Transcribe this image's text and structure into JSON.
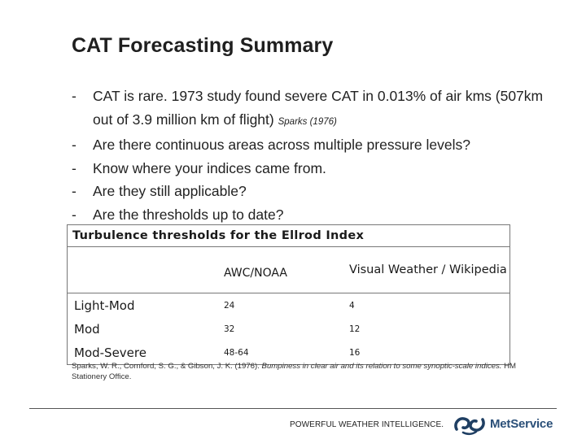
{
  "slide": {
    "title": "CAT Forecasting Summary",
    "bullets": [
      {
        "dash": "-",
        "text": "CAT is rare.  1973 study found severe CAT in 0.013% of air kms (507km out of 3.9 million km of flight)",
        "citation": "Sparks (1976)"
      },
      {
        "dash": "-",
        "text": "Are there continuous areas across multiple pressure levels?"
      },
      {
        "dash": "-",
        "text": "Know where your indices came from."
      },
      {
        "dash": "-",
        "text": "Are they still applicable?"
      },
      {
        "dash": "-",
        "text": "Are the thresholds up to date?"
      }
    ]
  },
  "table": {
    "caption": "Turbulence thresholds for the Ellrod Index",
    "header": {
      "blank": "",
      "col1": "AWC/NOAA",
      "col2": "Visual Weather / Wikipedia"
    },
    "rows": [
      {
        "label": "Light-Mod",
        "awc": "24",
        "vw": "4"
      },
      {
        "label": "Mod",
        "awc": "32",
        "vw": "12"
      },
      {
        "label": "Mod-Severe",
        "awc": "48-64",
        "vw": "16"
      }
    ]
  },
  "reference": {
    "authors": "Sparks, W. R., Cornford, S. G., & Gibson, J. K. (1976).",
    "title": "Bumpiness in clear air and its relation to some synoptic-scale indices.",
    "publisher": "HM Stationery Office."
  },
  "footer": {
    "tagline": "POWERFUL WEATHER INTELLIGENCE.",
    "brand": "MetService",
    "brand_color": "#2a4f78"
  }
}
